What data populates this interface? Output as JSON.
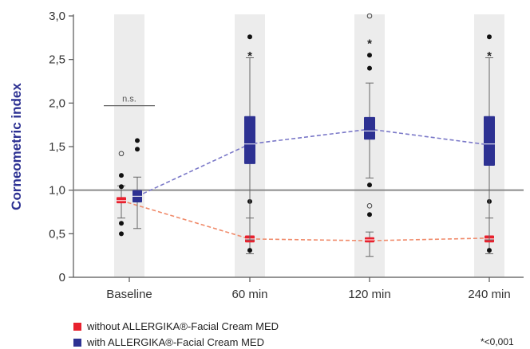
{
  "chart_data": {
    "type": "boxplot",
    "ylabel": "Corneometric index",
    "ylim": [
      0,
      3.0
    ],
    "yticks": [
      "0",
      "0,5",
      "1,0",
      "1,5",
      "2,0",
      "2,5",
      "3,0"
    ],
    "ytick_values": [
      0,
      0.5,
      1.0,
      1.5,
      2.0,
      2.5,
      3.0
    ],
    "categories": [
      "Baseline",
      "60 min",
      "120 min",
      "240 min"
    ],
    "reference_line": 1.0,
    "significance": {
      "baseline_label": "n.s.",
      "star_label": "*",
      "footnote": "*<0,001"
    },
    "series": [
      {
        "name": "without ALLERGIKA®-Facial Cream MED",
        "color": "#e8212e",
        "boxes": [
          {
            "q1": 0.85,
            "median": 0.88,
            "q3": 0.92,
            "whisker_low": 0.68,
            "whisker_high": 1.05,
            "outliers": [
              0.62,
              0.5
            ],
            "mild_outliers": []
          },
          {
            "q1": 0.4,
            "median": 0.44,
            "q3": 0.48,
            "whisker_low": 0.27,
            "whisker_high": 0.68,
            "outliers": [
              0.87
            ],
            "mild_outliers": []
          },
          {
            "q1": 0.4,
            "median": 0.43,
            "q3": 0.46,
            "whisker_low": 0.24,
            "whisker_high": 0.52,
            "outliers": [
              0.72
            ],
            "mild_outliers": [
              0.82
            ]
          },
          {
            "q1": 0.4,
            "median": 0.44,
            "q3": 0.48,
            "whisker_low": 0.27,
            "whisker_high": 0.68,
            "outliers": [
              0.87
            ],
            "mild_outliers": []
          }
        ],
        "trend": [
          0.88,
          0.44,
          0.42,
          0.45
        ]
      },
      {
        "name": "with ALLERGIKA®-Facial Cream MED",
        "color": "#2d3192",
        "boxes": [
          {
            "q1": 0.86,
            "median": 0.93,
            "q3": 1.0,
            "whisker_low": 0.56,
            "whisker_high": 1.15,
            "outliers": [
              1.47,
              1.57
            ],
            "mild_outliers": []
          },
          {
            "q1": 1.3,
            "median": 1.53,
            "q3": 1.85,
            "whisker_low": 0.43,
            "whisker_high": 2.52,
            "outliers": [
              0.31,
              2.76
            ],
            "mild_outliers": [],
            "star": 2.58
          },
          {
            "q1": 1.58,
            "median": 1.68,
            "q3": 1.84,
            "whisker_low": 1.14,
            "whisker_high": 2.23,
            "outliers": [
              1.06,
              2.4,
              2.55
            ],
            "mild_outliers": [
              3.0
            ],
            "star": 2.72
          },
          {
            "q1": 1.28,
            "median": 1.53,
            "q3": 1.85,
            "whisker_low": 0.43,
            "whisker_high": 2.52,
            "outliers": [
              0.31,
              2.76
            ],
            "mild_outliers": [],
            "star": 2.58
          }
        ],
        "trend": [
          0.93,
          1.53,
          1.7,
          1.52
        ]
      }
    ],
    "baseline_extra_outliers": {
      "filled": [
        1.17,
        1.04
      ],
      "open": [
        1.42
      ]
    }
  }
}
